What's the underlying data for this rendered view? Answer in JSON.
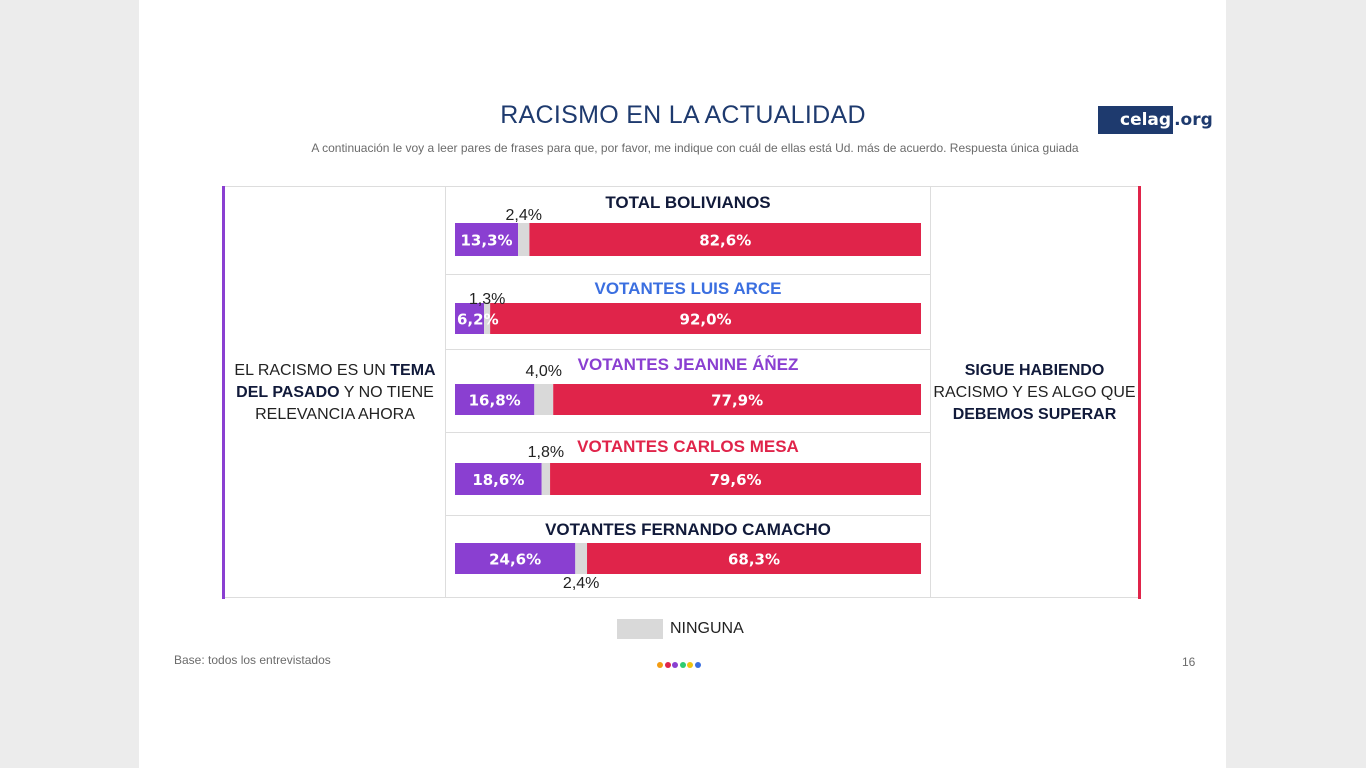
{
  "title": "RACISMO EN LA ACTUALIDAD",
  "subtitle": "A continuación le voy a leer pares de frases para que, por favor, me indique con cuál de ellas está Ud. más de acuerdo. Respuesta única guiada",
  "logo": {
    "brand": "celag",
    "suffix": ".org"
  },
  "left_label": {
    "part1": "EL RACISMO ES UN ",
    "bold1": "TEMA DEL PASADO",
    "part2": " Y NO TIENE RELEVANCIA AHORA"
  },
  "right_label": {
    "bold1": "SIGUE HABIENDO",
    "part1": " RACISMO Y ES ALGO QUE ",
    "bold2": "DEBEMOS SUPERAR"
  },
  "legend": {
    "label": "NINGUNA",
    "color": "#d9d9d9"
  },
  "footer": {
    "base": "Base: todos los entrevistados",
    "page": "16"
  },
  "colors": {
    "left": "#8a3fd1",
    "none": "#d9d9d9",
    "right": "#e0244a",
    "brand": "#1e3a6e"
  },
  "dot_colors": [
    "#f39c12",
    "#e0244a",
    "#8a3fd1",
    "#2ecc71",
    "#f1c40f",
    "#3b6fe0"
  ],
  "chart_data": {
    "type": "bar",
    "stacked": true,
    "orientation": "horizontal",
    "categories": [
      "TOTAL BOLIVIANOS",
      "VOTANTES LUIS ARCE",
      "VOTANTES JEANINE ÁÑEZ",
      "VOTANTES CARLOS MESA",
      "VOTANTES FERNANDO CAMACHO"
    ],
    "category_colors": [
      "#111a3a",
      "#3b6fe0",
      "#8a3fd1",
      "#e0244a",
      "#111a3a"
    ],
    "series": [
      {
        "name": "EL RACISMO ES UN TEMA DEL PASADO Y NO TIENE RELEVANCIA AHORA",
        "values": [
          13.3,
          6.2,
          16.8,
          18.6,
          24.6
        ],
        "labels": [
          "13,3%",
          "6,2%",
          "16,8%",
          "18,6%",
          "24,6%"
        ]
      },
      {
        "name": "NINGUNA",
        "values": [
          2.4,
          1.3,
          4.0,
          1.8,
          2.4
        ],
        "labels": [
          "2,4%",
          "1,3%",
          "4,0%",
          "1,8%",
          "2,4%"
        ]
      },
      {
        "name": "SIGUE HABIENDO RACISMO Y ES ALGO QUE DEBEMOS SUPERAR",
        "values": [
          82.6,
          92.0,
          77.9,
          79.6,
          68.3
        ],
        "labels": [
          "82,6%",
          "92,0%",
          "77,9%",
          "79,6%",
          "68,3%"
        ]
      }
    ],
    "none_label_position": [
      "above",
      "above",
      "above",
      "above",
      "below"
    ]
  }
}
